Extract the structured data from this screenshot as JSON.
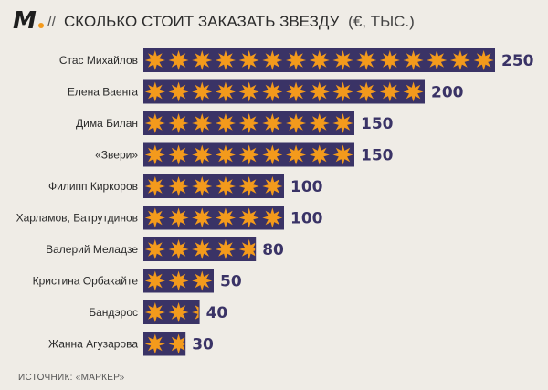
{
  "header": {
    "logo_text": "M",
    "separator": "//",
    "title": "СКОЛЬКО СТОИТ ЗАКАЗАТЬ ЗВЕЗДУ",
    "unit": "(€, ТЫС.)"
  },
  "source": "ИСТОЧНИК: «МАРКЕР»",
  "colors": {
    "bar": "#3a3366",
    "star": "#f39a1c",
    "logo_accent": "#f39a1c",
    "background": "#efece6"
  },
  "chart_data": {
    "type": "bar",
    "orientation": "horizontal",
    "title": "СКОЛЬКО СТОИТ ЗАКАЗАТЬ ЗВЕЗДУ (€, ТЫС.)",
    "xlabel": "",
    "ylabel": "",
    "xlim": [
      0,
      250
    ],
    "grid": false,
    "legend": "none",
    "categories": [
      "Стас Михайлов",
      "Елена Ваенга",
      "Дима Билан",
      "«Звери»",
      "Филипп Киркоров",
      "Харламов, Батрутдинов",
      "Валерий Меладзе",
      "Кристина Орбакайте",
      "Бандэрос",
      "Жанна Агузарова"
    ],
    "values": [
      250,
      200,
      150,
      150,
      100,
      100,
      80,
      50,
      40,
      30
    ],
    "labels": [
      "250",
      "200",
      "150",
      "150",
      "100",
      "100",
      "80",
      "50",
      "40",
      "30"
    ]
  }
}
